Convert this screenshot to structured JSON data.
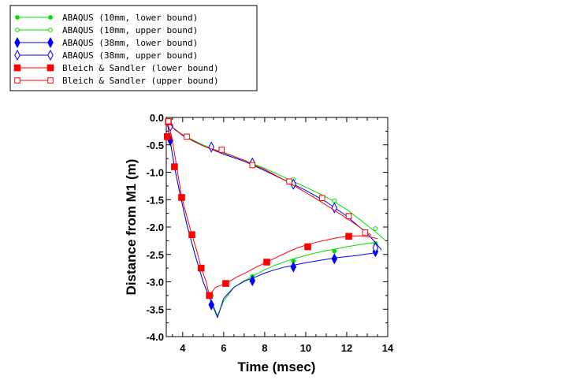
{
  "chart_data": {
    "type": "line",
    "title": "",
    "xlabel": "Time (msec)",
    "ylabel": "Distance from M1 (m)",
    "xlim": [
      3.2,
      14
    ],
    "ylim": [
      -4.0,
      0.0
    ],
    "xticks": [
      4,
      6,
      8,
      10,
      12,
      14
    ],
    "xtick_labels": [
      "4",
      "6",
      "8",
      "10",
      "12",
      "14"
    ],
    "yticks": [
      0,
      -0.5,
      -1,
      -1.5,
      -2,
      -2.5,
      -3,
      -3.5,
      -4
    ],
    "ytick_labels": [
      "0.0",
      "-0.5",
      "-1.0",
      "-1.5",
      "-2.0",
      "-2.5",
      "-3.0",
      "-3.5",
      "-4.0"
    ],
    "grid": false,
    "legend_position": "top-left",
    "series": [
      {
        "name": "ABAQUS (10mm, lower bound)",
        "color": "#00e000",
        "marker": "filled-circle",
        "x": [
          3.25,
          3.4,
          3.6,
          3.9,
          4.2,
          4.6,
          5.0,
          5.4,
          5.7,
          6.0,
          6.5,
          7.0,
          7.5,
          8.0,
          8.5,
          9.0,
          9.5,
          10.0,
          10.5,
          11.0,
          11.5,
          12.0,
          12.5,
          13.0,
          13.4
        ],
        "y": [
          -0.1,
          -0.45,
          -0.9,
          -1.45,
          -1.95,
          -2.5,
          -3.0,
          -3.35,
          -3.62,
          -3.35,
          -3.1,
          -2.98,
          -2.88,
          -2.78,
          -2.7,
          -2.63,
          -2.57,
          -2.52,
          -2.47,
          -2.43,
          -2.4,
          -2.36,
          -2.33,
          -2.3,
          -2.28
        ],
        "marker_x": [
          5.4,
          7.4,
          9.4,
          11.4,
          13.4
        ],
        "marker_y": [
          -3.25,
          -2.9,
          -2.62,
          -2.44,
          -2.3
        ]
      },
      {
        "name": "ABAQUS (10mm, upper bound)",
        "color": "#00e000",
        "marker": "open-circle",
        "x": [
          3.3,
          3.5,
          4.0,
          5.0,
          6.0,
          7.0,
          8.0,
          9.0,
          10.0,
          11.0,
          12.0,
          12.7,
          13.2,
          13.6,
          13.9
        ],
        "y": [
          -0.1,
          -0.18,
          -0.32,
          -0.5,
          -0.65,
          -0.78,
          -0.93,
          -1.1,
          -1.27,
          -1.45,
          -1.68,
          -1.88,
          -2.03,
          -2.15,
          -2.25
        ],
        "marker_x": [
          3.4,
          5.4,
          7.4,
          9.4,
          11.4,
          13.4
        ],
        "marker_y": [
          -0.14,
          -0.52,
          -0.82,
          -1.13,
          -1.52,
          -2.03
        ]
      },
      {
        "name": "ABAQUS (38mm, lower bound)",
        "color": "#0000ff",
        "marker": "filled-diamond",
        "x": [
          3.25,
          3.4,
          3.6,
          3.9,
          4.2,
          4.6,
          5.0,
          5.4,
          5.7,
          6.0,
          6.5,
          7.0,
          7.5,
          8.0,
          8.5,
          9.0,
          9.5,
          10.0,
          10.5,
          11.0,
          11.5,
          12.0,
          12.5,
          13.0,
          13.4
        ],
        "y": [
          -0.1,
          -0.45,
          -0.9,
          -1.45,
          -1.95,
          -2.5,
          -3.0,
          -3.38,
          -3.65,
          -3.3,
          -3.1,
          -2.99,
          -2.92,
          -2.84,
          -2.78,
          -2.73,
          -2.69,
          -2.65,
          -2.62,
          -2.59,
          -2.56,
          -2.54,
          -2.52,
          -2.49,
          -2.47
        ],
        "marker_x": [
          3.4,
          5.4,
          7.4,
          9.4,
          11.4,
          13.4
        ],
        "marker_y": [
          -0.42,
          -3.42,
          -2.98,
          -2.73,
          -2.58,
          -2.45
        ]
      },
      {
        "name": "ABAQUS (38mm, upper bound)",
        "color": "#0000ff",
        "marker": "open-diamond",
        "x": [
          3.3,
          3.5,
          4.0,
          5.0,
          6.0,
          7.0,
          8.0,
          9.0,
          10.0,
          11.0,
          12.0,
          12.5,
          13.0,
          13.4,
          13.7
        ],
        "y": [
          -0.1,
          -0.18,
          -0.33,
          -0.52,
          -0.67,
          -0.8,
          -0.97,
          -1.15,
          -1.33,
          -1.54,
          -1.8,
          -1.96,
          -2.12,
          -2.28,
          -2.42
        ],
        "marker_x": [
          3.4,
          5.4,
          7.4,
          9.4,
          11.4,
          13.4
        ],
        "marker_y": [
          -0.16,
          -0.54,
          -0.83,
          -1.22,
          -1.65,
          -2.38
        ]
      },
      {
        "name": "Bleich & Sandler (lower bound)",
        "color": "#ff0000",
        "marker": "filled-square",
        "x": [
          3.25,
          3.45,
          3.7,
          3.95,
          4.2,
          4.45,
          4.7,
          4.9,
          5.15,
          5.3,
          5.6,
          6.1,
          6.6,
          7.1,
          7.6,
          8.1,
          8.6,
          9.1,
          9.6,
          10.1,
          10.6,
          11.1,
          11.6,
          12.1,
          12.6,
          13.1,
          13.5
        ],
        "y": [
          -0.1,
          -0.32,
          -0.88,
          -1.45,
          -1.8,
          -2.14,
          -2.45,
          -2.74,
          -3.0,
          -3.25,
          -3.1,
          -3.03,
          -2.92,
          -2.83,
          -2.73,
          -2.64,
          -2.55,
          -2.46,
          -2.38,
          -2.32,
          -2.27,
          -2.23,
          -2.19,
          -2.17,
          -2.16,
          -2.18,
          -2.21
        ],
        "marker_x": [
          3.3,
          3.25,
          3.6,
          3.95,
          4.45,
          4.9,
          5.3,
          6.1,
          8.1,
          10.1,
          12.1
        ],
        "marker_y": [
          -0.08,
          -0.35,
          -0.9,
          -1.46,
          -2.14,
          -2.75,
          -3.25,
          -3.03,
          -2.64,
          -2.36,
          -2.17
        ]
      },
      {
        "name": "Bleich & Sandler (upper bound)",
        "color": "#ff0000",
        "marker": "open-square",
        "x": [
          3.3,
          3.6,
          4.0,
          4.5,
          5.0,
          5.5,
          6.0,
          6.5,
          7.0,
          7.5,
          8.0,
          8.5,
          9.0,
          9.5,
          10.0,
          10.5,
          11.0,
          11.5,
          12.0,
          12.5,
          13.0,
          13.2
        ],
        "y": [
          -0.07,
          -0.22,
          -0.32,
          -0.43,
          -0.52,
          -0.59,
          -0.64,
          -0.71,
          -0.78,
          -0.87,
          -0.95,
          -1.05,
          -1.15,
          -1.26,
          -1.37,
          -1.48,
          -1.6,
          -1.72,
          -1.84,
          -1.97,
          -2.1,
          -2.15
        ],
        "marker_x": [
          3.3,
          4.2,
          5.9,
          7.4,
          9.2,
          10.8,
          12.1,
          12.9
        ],
        "marker_y": [
          -0.07,
          -0.35,
          -0.59,
          -0.87,
          -1.17,
          -1.47,
          -1.8,
          -2.1
        ]
      }
    ]
  }
}
